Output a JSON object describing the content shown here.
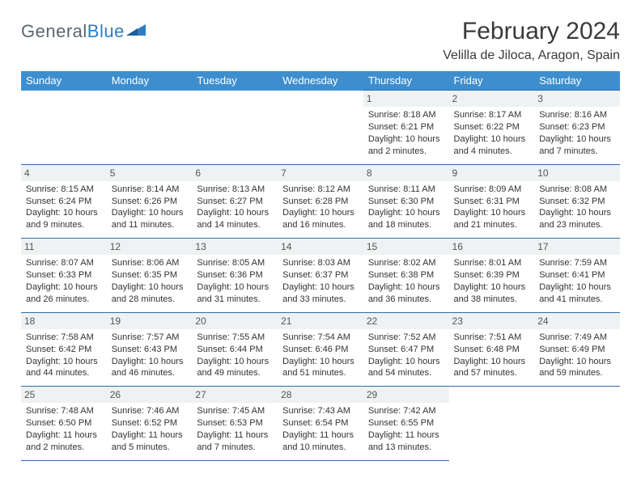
{
  "logo": {
    "text1": "General",
    "text2": "Blue"
  },
  "title": {
    "month": "February 2024",
    "location": "Velilla de Jiloca, Aragon, Spain"
  },
  "styling": {
    "header_bg": "#3e8ece",
    "header_text": "#ffffff",
    "border_color": "#2f6ea8",
    "daynum_bg": "#eef2f3",
    "logo_gray": "#5c6670",
    "logo_blue": "#2f7dc0",
    "body_text": "#333333",
    "page_bg": "#ffffff",
    "month_fontsize": 30,
    "location_fontsize": 16,
    "cell_fontsize": 11
  },
  "weekdays": [
    "Sunday",
    "Monday",
    "Tuesday",
    "Wednesday",
    "Thursday",
    "Friday",
    "Saturday"
  ],
  "weeks": [
    [
      null,
      null,
      null,
      null,
      {
        "d": "1",
        "sr": "8:18 AM",
        "ss": "6:21 PM",
        "dl1": "10 hours",
        "dl2": "and 2 minutes."
      },
      {
        "d": "2",
        "sr": "8:17 AM",
        "ss": "6:22 PM",
        "dl1": "10 hours",
        "dl2": "and 4 minutes."
      },
      {
        "d": "3",
        "sr": "8:16 AM",
        "ss": "6:23 PM",
        "dl1": "10 hours",
        "dl2": "and 7 minutes."
      }
    ],
    [
      {
        "d": "4",
        "sr": "8:15 AM",
        "ss": "6:24 PM",
        "dl1": "10 hours",
        "dl2": "and 9 minutes."
      },
      {
        "d": "5",
        "sr": "8:14 AM",
        "ss": "6:26 PM",
        "dl1": "10 hours",
        "dl2": "and 11 minutes."
      },
      {
        "d": "6",
        "sr": "8:13 AM",
        "ss": "6:27 PM",
        "dl1": "10 hours",
        "dl2": "and 14 minutes."
      },
      {
        "d": "7",
        "sr": "8:12 AM",
        "ss": "6:28 PM",
        "dl1": "10 hours",
        "dl2": "and 16 minutes."
      },
      {
        "d": "8",
        "sr": "8:11 AM",
        "ss": "6:30 PM",
        "dl1": "10 hours",
        "dl2": "and 18 minutes."
      },
      {
        "d": "9",
        "sr": "8:09 AM",
        "ss": "6:31 PM",
        "dl1": "10 hours",
        "dl2": "and 21 minutes."
      },
      {
        "d": "10",
        "sr": "8:08 AM",
        "ss": "6:32 PM",
        "dl1": "10 hours",
        "dl2": "and 23 minutes."
      }
    ],
    [
      {
        "d": "11",
        "sr": "8:07 AM",
        "ss": "6:33 PM",
        "dl1": "10 hours",
        "dl2": "and 26 minutes."
      },
      {
        "d": "12",
        "sr": "8:06 AM",
        "ss": "6:35 PM",
        "dl1": "10 hours",
        "dl2": "and 28 minutes."
      },
      {
        "d": "13",
        "sr": "8:05 AM",
        "ss": "6:36 PM",
        "dl1": "10 hours",
        "dl2": "and 31 minutes."
      },
      {
        "d": "14",
        "sr": "8:03 AM",
        "ss": "6:37 PM",
        "dl1": "10 hours",
        "dl2": "and 33 minutes."
      },
      {
        "d": "15",
        "sr": "8:02 AM",
        "ss": "6:38 PM",
        "dl1": "10 hours",
        "dl2": "and 36 minutes."
      },
      {
        "d": "16",
        "sr": "8:01 AM",
        "ss": "6:39 PM",
        "dl1": "10 hours",
        "dl2": "and 38 minutes."
      },
      {
        "d": "17",
        "sr": "7:59 AM",
        "ss": "6:41 PM",
        "dl1": "10 hours",
        "dl2": "and 41 minutes."
      }
    ],
    [
      {
        "d": "18",
        "sr": "7:58 AM",
        "ss": "6:42 PM",
        "dl1": "10 hours",
        "dl2": "and 44 minutes."
      },
      {
        "d": "19",
        "sr": "7:57 AM",
        "ss": "6:43 PM",
        "dl1": "10 hours",
        "dl2": "and 46 minutes."
      },
      {
        "d": "20",
        "sr": "7:55 AM",
        "ss": "6:44 PM",
        "dl1": "10 hours",
        "dl2": "and 49 minutes."
      },
      {
        "d": "21",
        "sr": "7:54 AM",
        "ss": "6:46 PM",
        "dl1": "10 hours",
        "dl2": "and 51 minutes."
      },
      {
        "d": "22",
        "sr": "7:52 AM",
        "ss": "6:47 PM",
        "dl1": "10 hours",
        "dl2": "and 54 minutes."
      },
      {
        "d": "23",
        "sr": "7:51 AM",
        "ss": "6:48 PM",
        "dl1": "10 hours",
        "dl2": "and 57 minutes."
      },
      {
        "d": "24",
        "sr": "7:49 AM",
        "ss": "6:49 PM",
        "dl1": "10 hours",
        "dl2": "and 59 minutes."
      }
    ],
    [
      {
        "d": "25",
        "sr": "7:48 AM",
        "ss": "6:50 PM",
        "dl1": "11 hours",
        "dl2": "and 2 minutes."
      },
      {
        "d": "26",
        "sr": "7:46 AM",
        "ss": "6:52 PM",
        "dl1": "11 hours",
        "dl2": "and 5 minutes."
      },
      {
        "d": "27",
        "sr": "7:45 AM",
        "ss": "6:53 PM",
        "dl1": "11 hours",
        "dl2": "and 7 minutes."
      },
      {
        "d": "28",
        "sr": "7:43 AM",
        "ss": "6:54 PM",
        "dl1": "11 hours",
        "dl2": "and 10 minutes."
      },
      {
        "d": "29",
        "sr": "7:42 AM",
        "ss": "6:55 PM",
        "dl1": "11 hours",
        "dl2": "and 13 minutes."
      },
      null,
      null
    ]
  ],
  "labels": {
    "sunrise": "Sunrise: ",
    "sunset": "Sunset: ",
    "daylight": "Daylight: "
  }
}
